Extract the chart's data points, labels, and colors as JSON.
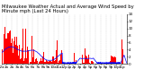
{
  "title": "Milwaukee Weather Actual and Average Wind Speed by Minute mph (Last 24 Hours)",
  "background_color": "#ffffff",
  "bar_color": "#ff0000",
  "line_color": "#0000ff",
  "ylim": [
    0,
    14
  ],
  "yticks": [
    0,
    2,
    4,
    6,
    8,
    10,
    12,
    14
  ],
  "n_points": 1440,
  "title_fontsize": 3.8,
  "tick_fontsize": 3.0,
  "seed": 99
}
